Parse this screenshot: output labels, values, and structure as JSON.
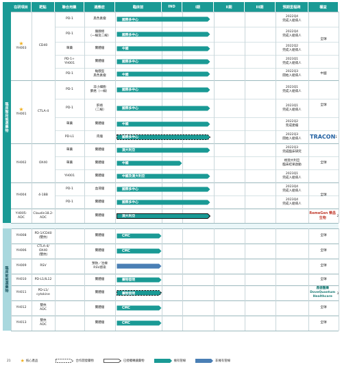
{
  "colors": {
    "header": "#1a9a95",
    "bar_proprietary": "#1a9a95",
    "bar_non_proprietary": "#4a7fb5",
    "sidebar_top": "#1a9a95",
    "sidebar_bottom": "#a9d8de",
    "section_bottom_bg": "#eaf6f8"
  },
  "headers": {
    "project": "在研項目",
    "target": "靶點",
    "combo": "聯合用藥",
    "indication": "適應症",
    "preclinical": "臨床前",
    "ind": "IND",
    "phase1": "I期",
    "phase2": "II期",
    "phase3": "III期",
    "milestone": "預期里程碑",
    "rights": "權益"
  },
  "sections": {
    "clinical": "臨床階段候選藥物",
    "preclinical": "臨床前候選藥物"
  },
  "rows": [
    {
      "project": "YH003",
      "core": true,
      "target": "CD40",
      "combo": "PD-1",
      "indication": "黑色素瘤",
      "bar": "國際多中心",
      "stage": "phase1",
      "style": "solid",
      "milestone": "2022Q4\n完成入組病人",
      "rights": "全球"
    },
    {
      "combo": "PD-1",
      "indication": "胰腺癌\n（一線及二線）",
      "bar": "國際多中心",
      "stage": "phase1",
      "style": "solid",
      "milestone": "2022Q4\n完成入組病人"
    },
    {
      "combo": "單藥",
      "indication": "實體瘤",
      "bar": "中國",
      "stage": "phase1",
      "style": "solid",
      "milestone": "2022Q2\n完成入組病人"
    },
    {
      "combo": "PD-1+\nYH001",
      "indication": "實體瘤",
      "bar": "國際多中心",
      "stage": "phase1",
      "style": "solid",
      "milestone": "2023Q1\n完成入組病人"
    },
    {
      "combo": "PD-1",
      "indication": "黏膜型\n黑色素瘤",
      "bar": "中國",
      "stage": "phase1",
      "style": "solid",
      "milestone": "2022Q3\n開始入組病人",
      "rights": "中國"
    },
    {
      "project": "YH001",
      "core": true,
      "target": "CTLA-4",
      "combo": "PD-1",
      "indication": "非小細胞\n肺癌（一線）",
      "bar": "國際多中心",
      "stage": "phase1",
      "style": "solid",
      "milestone": "2023Q1\n完成入組病人",
      "rights": "全球"
    },
    {
      "combo": "PD-1",
      "indication": "肝癌\n（二線）",
      "bar": "國際多中心",
      "stage": "phase1",
      "style": "solid",
      "milestone": "2023Q1\n完成入組病人"
    },
    {
      "combo": "單藥",
      "indication": "實體瘤",
      "bar": "中國",
      "stage": "phase1",
      "style": "solid",
      "milestone": "2022Q2\n完成建檔"
    },
    {
      "combo": "PD-L1",
      "indication": "肉瘤",
      "bar": "國際多中心",
      "stage": "phase1",
      "style": "dashed",
      "milestone": "2022Q3\n開始入組病人",
      "logo": "TRACON",
      "note": "1"
    },
    {
      "project": "YH002",
      "target": "OX40",
      "combo": "單藥",
      "indication": "實體瘤",
      "bar": "澳大利亞",
      "stage": "phase1",
      "style": "solid",
      "milestone": "2022Q3\n完成臨床研究",
      "rights": "全球"
    },
    {
      "combo": "單藥",
      "indication": "實體瘤",
      "bar": "中國",
      "stage": "ind",
      "style": "solid",
      "milestone": "視澳大利亞\n臨床結果啟動"
    },
    {
      "combo": "YH001",
      "indication": "實體瘤",
      "bar": "中國及澳大利亞",
      "stage": "phase1",
      "style": "solid",
      "milestone": "2023Q1\n完成入組病人"
    },
    {
      "project": "YH004",
      "target": "4-1BB",
      "combo": "PD-1",
      "indication": "血液瘤",
      "bar": "國際多中心",
      "stage": "phase1",
      "style": "solid",
      "milestone": "2023Q4\n完成入組病人",
      "rights": "全球"
    },
    {
      "combo": "PD-1",
      "indication": "實體瘤",
      "bar": "國際多中心",
      "stage": "phase1",
      "style": "solid",
      "milestone": "2023Q4\n完成入組病人"
    },
    {
      "project": "YH005-\nADC",
      "target": "Claudin18.2-\nADC",
      "combo": "",
      "indication": "實體瘤",
      "bar": "澳大利亞",
      "stage": "phase1",
      "style": "outlined",
      "milestone": "",
      "logo": "RemeGen 榮昌生物",
      "note": "2"
    },
    {
      "project": "YH008",
      "target": "PD-1/CD40\n(雙抗)",
      "combo": "",
      "indication": "實體瘤",
      "bar": "CMC",
      "stage": "preclinical",
      "style": "solid",
      "milestone": "",
      "rights": "全球"
    },
    {
      "project": "YH006",
      "target": "CTLA-4/\nOX40\n(雙抗)",
      "combo": "",
      "indication": "實體瘤",
      "bar": "CMC",
      "stage": "preclinical",
      "style": "solid",
      "milestone": "",
      "rights": "全球"
    },
    {
      "project": "YH009",
      "target": "RSV",
      "combo": "",
      "indication": "預防／治療\nRSV感染",
      "bar": "",
      "stage": "preclinical",
      "style": "blue",
      "milestone": "",
      "rights": "全球"
    },
    {
      "project": "YH010",
      "target": "PD-L1/IL12",
      "combo": "",
      "indication": "實體瘤",
      "bar": "藥物發現",
      "stage": "preclinical",
      "style": "solid",
      "milestone": "",
      "rights": "全球"
    },
    {
      "project": "YH011",
      "target": "PD-L1/\ncytokine",
      "combo": "",
      "indication": "實體瘤",
      "bar": "藥物發現",
      "stage": "preclinical",
      "style": "dashed",
      "milestone": "",
      "logo": "鼎德醫藥 DoveQuantum Healthcare",
      "note": "3"
    },
    {
      "project": "YH012",
      "target": "雙抗\nADC",
      "combo": "",
      "indication": "實體瘤",
      "bar": "CMC",
      "stage": "preclinical",
      "style": "solid",
      "milestone": "",
      "rights": "全球"
    },
    {
      "project": "YH013",
      "target": "雙抗\nADC",
      "combo": "",
      "indication": "實體瘤",
      "bar": "CMC",
      "stage": "preclinical",
      "style": "solid",
      "milestone": "",
      "rights": "全球"
    }
  ],
  "legend": {
    "page": "21",
    "core": "核心產品",
    "co_dev": "合作開發藥物",
    "licensed": "已授權轉讓藥物",
    "proprietary": "擁有管線",
    "non_proprietary": "非擁有管線"
  },
  "icons": {
    "core": "star-icon"
  }
}
